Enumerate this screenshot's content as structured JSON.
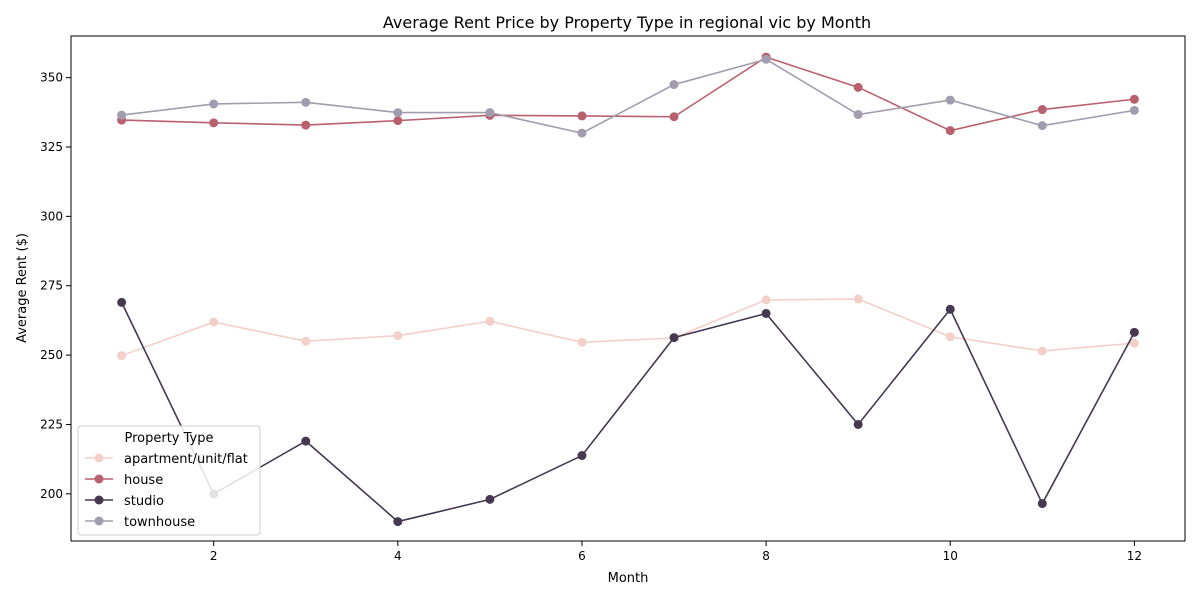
{
  "chart_data": {
    "type": "line",
    "title": "Average Rent Price by Property Type in regional vic by Month",
    "xlabel": "Month",
    "ylabel": "Average Rent ($)",
    "xlim": [
      0.45,
      12.55
    ],
    "ylim": [
      183,
      365
    ],
    "xticks": [
      2,
      4,
      6,
      8,
      10,
      12
    ],
    "yticks": [
      200,
      225,
      250,
      275,
      300,
      325,
      350
    ],
    "grid": false,
    "legend": {
      "title": "Property Type",
      "placement": "lower-left"
    },
    "x": [
      1,
      2,
      3,
      4,
      5,
      6,
      7,
      8,
      9,
      10,
      11,
      12
    ],
    "series": [
      {
        "name": "apartment/unit/flat",
        "color": "#f2d0c9",
        "values": [
          249.8,
          261.9,
          255.0,
          257.0,
          262.2,
          254.6,
          256.2,
          269.9,
          270.2,
          256.6,
          251.5,
          254.3
        ]
      },
      {
        "name": "house",
        "color": "#b9606f",
        "values": [
          334.7,
          333.7,
          332.9,
          334.5,
          336.4,
          336.2,
          335.9,
          357.4,
          346.5,
          330.9,
          338.5,
          342.2
        ]
      },
      {
        "name": "studio",
        "color": "#45394f",
        "values": [
          269.0,
          200.0,
          219.0,
          190.0,
          198.0,
          213.8,
          256.3,
          265.0,
          225.0,
          266.5,
          196.5,
          258.2
        ]
      },
      {
        "name": "townhouse",
        "color": "#a29dae",
        "values": [
          336.5,
          340.5,
          341.1,
          337.4,
          337.4,
          330.0,
          347.5,
          356.6,
          336.7,
          341.9,
          332.7,
          338.2
        ]
      }
    ]
  }
}
